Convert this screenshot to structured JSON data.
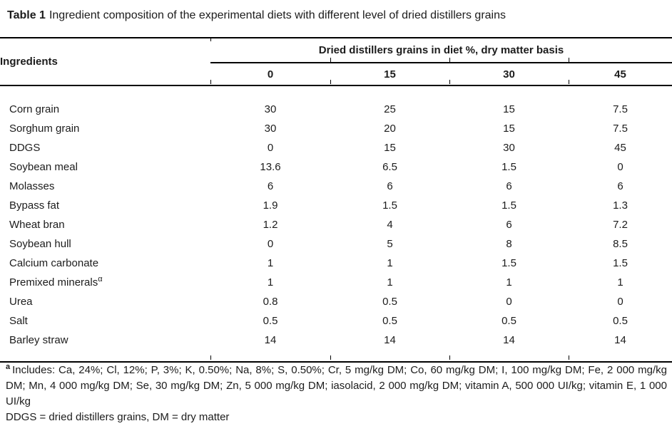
{
  "caption": {
    "label": "Table 1",
    "text": "Ingredient composition of the experimental diets with different level of dried distillers grains"
  },
  "table": {
    "row_header": "Ingredients",
    "span_header": "Dried distillers grains in diet %, dry matter basis",
    "columns": [
      "0",
      "15",
      "30",
      "45"
    ],
    "rows": [
      {
        "ingredient": "Corn grain",
        "values": [
          "30",
          "25",
          "15",
          "7.5"
        ]
      },
      {
        "ingredient": "Sorghum grain",
        "values": [
          "30",
          "20",
          "15",
          "7.5"
        ]
      },
      {
        "ingredient": "DDGS",
        "values": [
          "0",
          "15",
          "30",
          "45"
        ]
      },
      {
        "ingredient": "Soybean meal",
        "values": [
          "13.6",
          "6.5",
          "1.5",
          "0"
        ]
      },
      {
        "ingredient": "Molasses",
        "values": [
          "6",
          "6",
          "6",
          "6"
        ]
      },
      {
        "ingredient": "Bypass fat",
        "values": [
          "1.9",
          "1.5",
          "1.5",
          "1.3"
        ]
      },
      {
        "ingredient": "Wheat bran",
        "values": [
          "1.2",
          "4",
          "6",
          "7.2"
        ]
      },
      {
        "ingredient": "Soybean hull",
        "values": [
          "0",
          "5",
          "8",
          "8.5"
        ]
      },
      {
        "ingredient": "Calcium carbonate",
        "values": [
          "1",
          "1",
          "1.5",
          "1.5"
        ]
      },
      {
        "ingredient": "Premixed minerals",
        "sup": "α",
        "values": [
          "1",
          "1",
          "1",
          "1"
        ]
      },
      {
        "ingredient": "Urea",
        "values": [
          "0.8",
          "0.5",
          "0",
          "0"
        ]
      },
      {
        "ingredient": "Salt",
        "values": [
          "0.5",
          "0.5",
          "0.5",
          "0.5"
        ]
      },
      {
        "ingredient": "Barley straw",
        "values": [
          "14",
          "14",
          "14",
          "14"
        ]
      }
    ]
  },
  "footnotes": {
    "marker": "a",
    "includes": "Includes: Ca, 24%; Cl, 12%; P, 3%; K, 0.50%; Na, 8%; S, 0.50%; Cr, 5 mg/kg DM; Co, 60 mg/kg DM; I, 100 mg/kg DM; Fe, 2 000 mg/kg DM; Mn, 4 000 mg/kg DM; Se, 30 mg/kg DM; Zn, 5 000 mg/kg DM; iasolacid, 2 000 mg/kg DM; vitamin A, 500 000 UI/kg; vitamin E, 1 000 UI/kg",
    "abbreviations": "DDGS = dried distillers grains, DM = dry matter"
  }
}
